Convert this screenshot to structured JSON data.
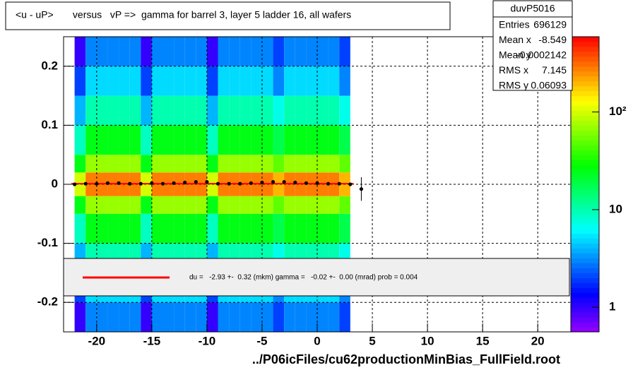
{
  "chart_data": {
    "type": "heatmap",
    "title": "<u - uP>       versus   vP =>  gamma for barrel 3, layer 5 ladder 16, all wafers",
    "xlabel": "../P06icFiles/cu62productionMinBias_FullField.root",
    "xlim": [
      -23,
      23
    ],
    "ylim": [
      -0.25,
      0.25
    ],
    "xticks": [
      -20,
      -15,
      -10,
      -5,
      0,
      5,
      10,
      15,
      20
    ],
    "yticks": [
      -0.2,
      -0.1,
      0,
      0.1,
      0.2
    ],
    "grid": true,
    "zlim": [
      0.56,
      590
    ],
    "zlog": true,
    "zticks": [
      1,
      10,
      {
        "value": 100,
        "label": "10²"
      }
    ],
    "heatmap": {
      "x_bins": [
        -22,
        -21,
        -20,
        -19,
        -18,
        -17,
        -16,
        -15,
        -14,
        -13,
        -12,
        -11,
        -10,
        -9,
        -8,
        -7,
        -6,
        -5,
        -4,
        -3,
        -2,
        -1,
        0,
        1,
        2,
        3
      ],
      "y_bins": [
        -0.25,
        -0.2,
        -0.15,
        -0.1,
        -0.05,
        -0.02,
        0.02,
        0.05,
        0.1,
        0.15,
        0.2,
        0.25
      ],
      "counts": [
        [
          1,
          3,
          3,
          3,
          3,
          3,
          1,
          3,
          3,
          3,
          3,
          3,
          1,
          3,
          3,
          3,
          3,
          3,
          2,
          3,
          3,
          3,
          3,
          3,
          2
        ],
        [
          2,
          5,
          5,
          5,
          5,
          5,
          2,
          5,
          5,
          5,
          5,
          5,
          2,
          5,
          5,
          5,
          5,
          5,
          3,
          5,
          5,
          5,
          5,
          5,
          3
        ],
        [
          4,
          10,
          10,
          10,
          10,
          10,
          4,
          10,
          10,
          10,
          10,
          10,
          4,
          10,
          10,
          10,
          10,
          10,
          7,
          10,
          10,
          10,
          10,
          10,
          7
        ],
        [
          9,
          25,
          25,
          25,
          25,
          25,
          9,
          25,
          25,
          25,
          25,
          25,
          9,
          25,
          25,
          25,
          25,
          25,
          18,
          25,
          25,
          25,
          25,
          25,
          18
        ],
        [
          25,
          70,
          70,
          70,
          70,
          70,
          25,
          70,
          70,
          70,
          70,
          70,
          25,
          70,
          70,
          70,
          70,
          70,
          50,
          70,
          70,
          70,
          70,
          70,
          50
        ],
        [
          100,
          280,
          280,
          280,
          280,
          280,
          100,
          280,
          280,
          280,
          280,
          280,
          100,
          280,
          280,
          280,
          280,
          280,
          200,
          280,
          280,
          280,
          280,
          280,
          200
        ],
        [
          25,
          70,
          70,
          70,
          70,
          70,
          25,
          70,
          70,
          70,
          70,
          70,
          25,
          70,
          70,
          70,
          70,
          70,
          50,
          70,
          70,
          70,
          70,
          70,
          50
        ],
        [
          9,
          25,
          25,
          25,
          25,
          25,
          9,
          25,
          25,
          25,
          25,
          25,
          9,
          25,
          25,
          25,
          25,
          25,
          18,
          25,
          25,
          25,
          25,
          25,
          18
        ],
        [
          4,
          10,
          10,
          10,
          10,
          10,
          4,
          10,
          10,
          10,
          10,
          10,
          4,
          10,
          10,
          10,
          10,
          10,
          7,
          10,
          10,
          10,
          10,
          10,
          7
        ],
        [
          2,
          5,
          5,
          5,
          5,
          5,
          2,
          5,
          5,
          5,
          5,
          5,
          2,
          5,
          5,
          5,
          5,
          5,
          3,
          5,
          5,
          5,
          5,
          5,
          3
        ],
        [
          1,
          3,
          3,
          3,
          3,
          3,
          1,
          3,
          3,
          3,
          3,
          3,
          1,
          3,
          3,
          3,
          3,
          3,
          2,
          3,
          3,
          3,
          3,
          3,
          2
        ]
      ]
    },
    "profile": {
      "color": "#000000",
      "x": [
        -22,
        -21,
        -20,
        -19,
        -18,
        -17,
        -16,
        -15,
        -14,
        -13,
        -12,
        -11,
        -10,
        -9,
        -8,
        -7,
        -6,
        -5,
        -4,
        -3,
        -2,
        -1,
        0,
        1,
        2,
        3,
        4
      ],
      "values": [
        0.0,
        0.001,
        0.001,
        0.002,
        0.002,
        0.001,
        0.001,
        0.002,
        0.001,
        0.002,
        0.003,
        0.004,
        0.004,
        0.001,
        0.001,
        0.001,
        0.002,
        0.003,
        0.004,
        0.004,
        0.003,
        0.002,
        0.002,
        0.001,
        0.001,
        0.0,
        -0.008
      ],
      "errors": [
        0.001,
        0.001,
        0.001,
        0.001,
        0.001,
        0.001,
        0.001,
        0.001,
        0.001,
        0.001,
        0.001,
        0.001,
        0.001,
        0.001,
        0.001,
        0.001,
        0.001,
        0.001,
        0.001,
        0.001,
        0.001,
        0.001,
        0.001,
        0.001,
        0.001,
        0.001,
        0.02
      ]
    },
    "fit": {
      "color": "#ff0000",
      "x": [
        -22.3,
        3.3
      ],
      "values": [
        0.001,
        0.001
      ],
      "label": "du =   -2.93 +-  0.32 (mkm) gamma =   -0.02 +-  0.00 (mrad) prob = 0.004"
    },
    "stats": {
      "name": "duvP5016",
      "rows": [
        {
          "label": "Entries",
          "value": "696129"
        },
        {
          "label": "Mean x",
          "value": "-8.549"
        },
        {
          "label": "Mean y",
          "value": "-0.0002142"
        },
        {
          "label": "RMS x",
          "value": "7.145"
        },
        {
          "label": "RMS y",
          "value": "0.06093"
        }
      ]
    }
  }
}
